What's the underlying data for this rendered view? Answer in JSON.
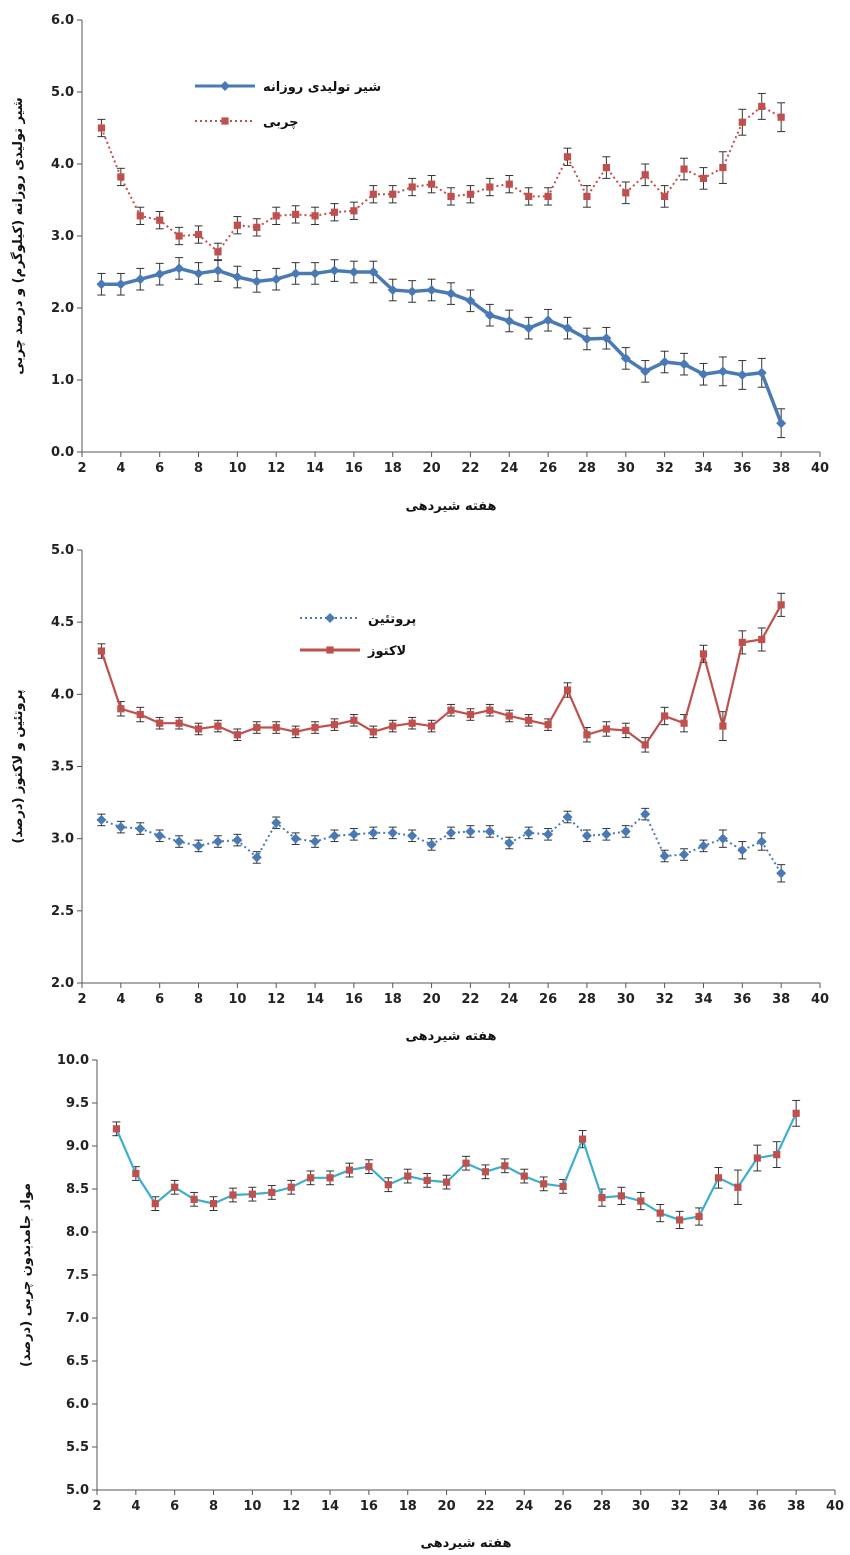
{
  "chart_data": [
    {
      "type": "line",
      "xlabel": "هفته شیردهی",
      "ylabel": "شیر تولیدی روزانه (کیلوگرم) و درصد چربی",
      "xlim": [
        2,
        40
      ],
      "ylim": [
        0,
        6
      ],
      "xticks": [
        "2",
        "4",
        "6",
        "8",
        "10",
        "12",
        "14",
        "16",
        "18",
        "20",
        "22",
        "24",
        "26",
        "28",
        "30",
        "32",
        "34",
        "36",
        "38",
        "40"
      ],
      "yticks": [
        "0.0",
        "1.0",
        "2.0",
        "3.0",
        "4.0",
        "5.0",
        "6.0"
      ],
      "legend_position": "top-left",
      "x": [
        3,
        4,
        5,
        6,
        7,
        8,
        9,
        10,
        11,
        12,
        13,
        14,
        15,
        16,
        17,
        18,
        19,
        20,
        21,
        22,
        23,
        24,
        25,
        26,
        27,
        28,
        29,
        30,
        31,
        32,
        33,
        34,
        35,
        36,
        37,
        38
      ],
      "series": [
        {
          "name": "شیر تولیدی روزانه",
          "color": "#4a7ab5",
          "style": "solid",
          "marker": "diamond",
          "values": [
            2.33,
            2.33,
            2.4,
            2.47,
            2.55,
            2.48,
            2.52,
            2.43,
            2.37,
            2.4,
            2.48,
            2.48,
            2.52,
            2.5,
            2.5,
            2.25,
            2.23,
            2.25,
            2.2,
            2.1,
            1.9,
            1.82,
            1.72,
            1.83,
            1.72,
            1.57,
            1.58,
            1.3,
            1.12,
            1.25,
            1.22,
            1.08,
            1.12,
            1.07,
            1.1,
            0.4
          ],
          "errors": [
            0.15,
            0.15,
            0.15,
            0.15,
            0.15,
            0.15,
            0.15,
            0.15,
            0.15,
            0.15,
            0.15,
            0.15,
            0.15,
            0.15,
            0.15,
            0.15,
            0.15,
            0.15,
            0.15,
            0.15,
            0.15,
            0.15,
            0.15,
            0.15,
            0.15,
            0.15,
            0.15,
            0.15,
            0.15,
            0.15,
            0.15,
            0.15,
            0.2,
            0.2,
            0.2,
            0.2
          ]
        },
        {
          "name": "چربی",
          "color": "#c0504d",
          "style": "dotted",
          "marker": "square",
          "values": [
            4.5,
            3.82,
            3.28,
            3.22,
            3.0,
            3.02,
            2.78,
            3.15,
            3.12,
            3.28,
            3.3,
            3.28,
            3.33,
            3.35,
            3.58,
            3.58,
            3.68,
            3.72,
            3.55,
            3.58,
            3.68,
            3.72,
            3.55,
            3.55,
            4.1,
            3.55,
            3.95,
            3.6,
            3.85,
            3.55,
            3.93,
            3.8,
            3.95,
            4.58,
            4.8,
            4.65
          ],
          "errors": [
            0.12,
            0.12,
            0.12,
            0.12,
            0.12,
            0.12,
            0.12,
            0.12,
            0.12,
            0.12,
            0.12,
            0.12,
            0.12,
            0.12,
            0.12,
            0.12,
            0.12,
            0.12,
            0.12,
            0.12,
            0.12,
            0.12,
            0.12,
            0.12,
            0.12,
            0.15,
            0.15,
            0.15,
            0.15,
            0.15,
            0.15,
            0.15,
            0.22,
            0.18,
            0.18,
            0.2
          ]
        }
      ]
    },
    {
      "type": "line",
      "xlabel": "هفته شیردهی",
      "ylabel": "پروتئین و لاکتوز (درصد)",
      "xlim": [
        2,
        40
      ],
      "ylim": [
        2,
        5
      ],
      "xticks": [
        "2",
        "4",
        "6",
        "8",
        "10",
        "12",
        "14",
        "16",
        "18",
        "20",
        "22",
        "24",
        "26",
        "28",
        "30",
        "32",
        "34",
        "36",
        "38",
        "40"
      ],
      "yticks": [
        "2.0",
        "2.5",
        "3.0",
        "3.5",
        "4.0",
        "4.5",
        "5.0"
      ],
      "legend_position": "top-left",
      "x": [
        3,
        4,
        5,
        6,
        7,
        8,
        9,
        10,
        11,
        12,
        13,
        14,
        15,
        16,
        17,
        18,
        19,
        20,
        21,
        22,
        23,
        24,
        25,
        26,
        27,
        28,
        29,
        30,
        31,
        32,
        33,
        34,
        35,
        36,
        37,
        38
      ],
      "series": [
        {
          "name": "پروتئین",
          "color": "#4a7ab5",
          "style": "dotted",
          "marker": "diamond",
          "values": [
            3.13,
            3.08,
            3.07,
            3.02,
            2.98,
            2.95,
            2.98,
            2.99,
            2.87,
            3.11,
            3.0,
            2.98,
            3.02,
            3.03,
            3.04,
            3.04,
            3.02,
            2.96,
            3.04,
            3.05,
            3.05,
            2.97,
            3.04,
            3.03,
            3.15,
            3.02,
            3.03,
            3.05,
            3.17,
            2.88,
            2.89,
            2.95,
            3.0,
            2.92,
            2.98,
            2.76
          ],
          "errors": [
            0.04,
            0.04,
            0.04,
            0.04,
            0.04,
            0.04,
            0.04,
            0.04,
            0.04,
            0.04,
            0.04,
            0.04,
            0.04,
            0.04,
            0.04,
            0.04,
            0.04,
            0.04,
            0.04,
            0.04,
            0.04,
            0.04,
            0.04,
            0.04,
            0.04,
            0.04,
            0.04,
            0.04,
            0.04,
            0.04,
            0.04,
            0.04,
            0.06,
            0.06,
            0.06,
            0.06
          ]
        },
        {
          "name": "لاکتوز",
          "color": "#c0504d",
          "style": "solid",
          "marker": "square",
          "values": [
            4.3,
            3.9,
            3.86,
            3.8,
            3.8,
            3.76,
            3.78,
            3.72,
            3.77,
            3.77,
            3.74,
            3.77,
            3.79,
            3.82,
            3.74,
            3.78,
            3.8,
            3.78,
            3.89,
            3.86,
            3.89,
            3.85,
            3.82,
            3.79,
            4.03,
            3.72,
            3.76,
            3.75,
            3.65,
            3.85,
            3.8,
            4.28,
            3.78,
            4.36,
            4.38,
            4.62
          ],
          "errors": [
            0.05,
            0.05,
            0.05,
            0.04,
            0.04,
            0.04,
            0.04,
            0.04,
            0.04,
            0.04,
            0.04,
            0.04,
            0.04,
            0.04,
            0.04,
            0.04,
            0.04,
            0.04,
            0.04,
            0.04,
            0.04,
            0.04,
            0.04,
            0.04,
            0.05,
            0.05,
            0.05,
            0.05,
            0.05,
            0.06,
            0.06,
            0.06,
            0.1,
            0.08,
            0.08,
            0.08
          ]
        }
      ]
    },
    {
      "type": "line",
      "xlabel": "هفته شیردهی",
      "ylabel": "مواد جامدبدون چربی (درصد)",
      "xlim": [
        2,
        40
      ],
      "ylim": [
        5,
        10
      ],
      "xticks": [
        "2",
        "4",
        "6",
        "8",
        "10",
        "12",
        "14",
        "16",
        "18",
        "20",
        "22",
        "24",
        "26",
        "28",
        "30",
        "32",
        "34",
        "36",
        "38",
        "40"
      ],
      "yticks": [
        "5.0",
        "5.5",
        "6.0",
        "6.5",
        "7.0",
        "7.5",
        "8.0",
        "8.5",
        "9.0",
        "9.5",
        "10.0"
      ],
      "x": [
        3,
        4,
        5,
        6,
        7,
        8,
        9,
        10,
        11,
        12,
        13,
        14,
        15,
        16,
        17,
        18,
        19,
        20,
        21,
        22,
        23,
        24,
        25,
        26,
        27,
        28,
        29,
        30,
        31,
        32,
        33,
        34,
        35,
        36,
        37,
        38
      ],
      "series": [
        {
          "color": "#3ab0d0",
          "marker_color": "#c0504d",
          "style": "solid",
          "marker": "square",
          "values": [
            9.2,
            8.68,
            8.33,
            8.52,
            8.38,
            8.33,
            8.43,
            8.44,
            8.46,
            8.52,
            8.63,
            8.63,
            8.72,
            8.76,
            8.55,
            8.65,
            8.6,
            8.58,
            8.8,
            8.7,
            8.77,
            8.65,
            8.56,
            8.53,
            9.08,
            8.4,
            8.42,
            8.36,
            8.22,
            8.14,
            8.18,
            8.63,
            8.52,
            8.86,
            8.9,
            9.38
          ],
          "errors": [
            0.08,
            0.08,
            0.08,
            0.08,
            0.08,
            0.08,
            0.08,
            0.08,
            0.08,
            0.08,
            0.08,
            0.08,
            0.08,
            0.08,
            0.08,
            0.08,
            0.08,
            0.08,
            0.08,
            0.08,
            0.08,
            0.08,
            0.08,
            0.08,
            0.1,
            0.1,
            0.1,
            0.1,
            0.1,
            0.1,
            0.1,
            0.12,
            0.2,
            0.15,
            0.15,
            0.15
          ]
        }
      ]
    }
  ]
}
